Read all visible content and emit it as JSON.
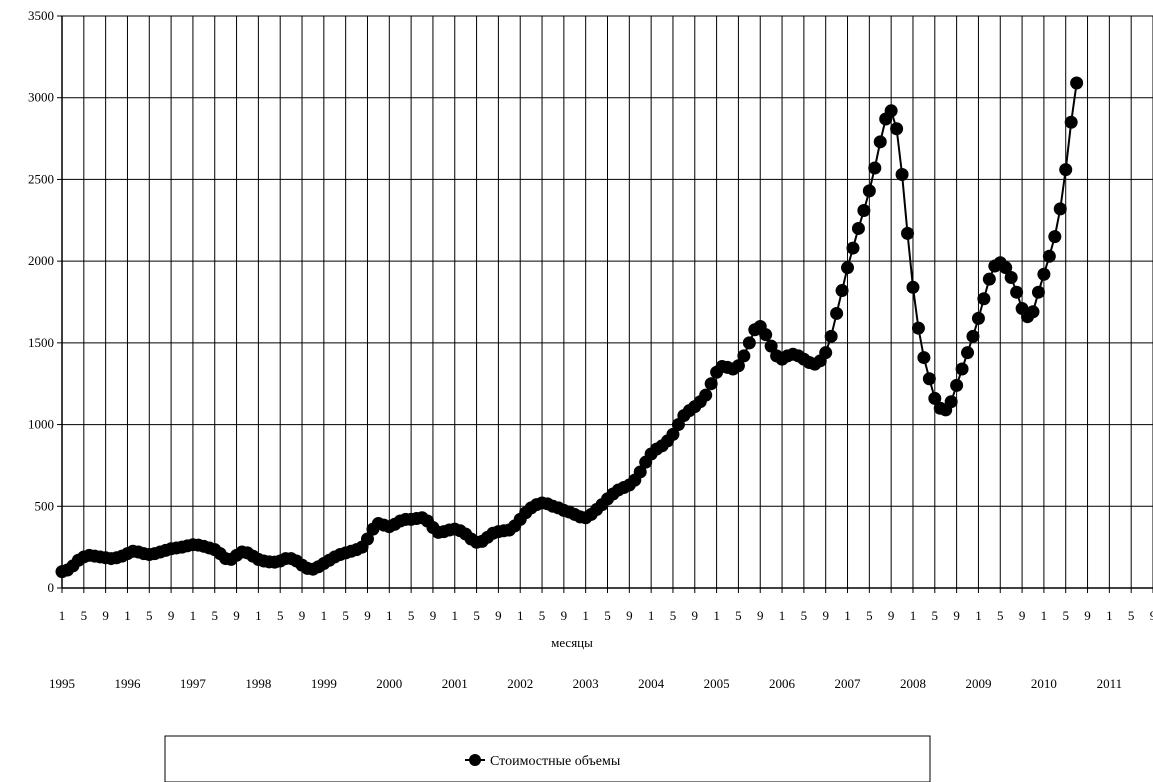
{
  "chart_data": {
    "type": "line",
    "title": "",
    "xlabel": "месяцы",
    "ylabel": "",
    "ylim": [
      0,
      3500
    ],
    "yticks": [
      0,
      500,
      1000,
      1500,
      2000,
      2500,
      3000,
      3500
    ],
    "month_tick_labels": [
      "1",
      "5",
      "9"
    ],
    "years": [
      "1995",
      "1996",
      "1997",
      "1998",
      "1999",
      "2000",
      "2001",
      "2002",
      "2003",
      "2004",
      "2005",
      "2006",
      "2007",
      "2008",
      "2009",
      "2010",
      "2011"
    ],
    "grid": true,
    "legend": {
      "placement": "bottom",
      "entries": [
        "Стоимостные объемы"
      ]
    },
    "series": [
      {
        "name": "Стоимостные объемы",
        "color": "#000000",
        "marker": "circle",
        "values": [
          100,
          110,
          135,
          170,
          190,
          200,
          195,
          190,
          185,
          180,
          185,
          195,
          210,
          225,
          220,
          210,
          205,
          210,
          220,
          230,
          240,
          245,
          250,
          258,
          265,
          262,
          255,
          245,
          235,
          210,
          180,
          175,
          200,
          220,
          215,
          195,
          175,
          165,
          160,
          158,
          165,
          180,
          180,
          165,
          140,
          120,
          115,
          130,
          150,
          170,
          190,
          205,
          215,
          225,
          235,
          250,
          300,
          360,
          395,
          385,
          375,
          390,
          410,
          420,
          420,
          425,
          430,
          410,
          370,
          340,
          345,
          355,
          360,
          350,
          330,
          300,
          280,
          285,
          310,
          335,
          345,
          350,
          355,
          380,
          420,
          460,
          490,
          510,
          520,
          515,
          500,
          490,
          475,
          465,
          450,
          435,
          430,
          450,
          480,
          510,
          545,
          575,
          600,
          615,
          630,
          660,
          710,
          770,
          820,
          850,
          870,
          900,
          940,
          1000,
          1055,
          1085,
          1110,
          1140,
          1180,
          1250,
          1320,
          1355,
          1350,
          1340,
          1360,
          1420,
          1500,
          1580,
          1600,
          1550,
          1480,
          1420,
          1400,
          1420,
          1430,
          1420,
          1400,
          1380,
          1370,
          1390,
          1440,
          1540,
          1680,
          1820,
          1960,
          2080,
          2200,
          2310,
          2430,
          2570,
          2730,
          2870,
          2920,
          2810,
          2530,
          2170,
          1840,
          1590,
          1410,
          1280,
          1160,
          1100,
          1090,
          1140,
          1240,
          1340,
          1440,
          1540,
          1650,
          1770,
          1890,
          1970,
          1990,
          1960,
          1900,
          1810,
          1710,
          1660,
          1690,
          1810,
          1920,
          2030,
          2150,
          2320,
          2560,
          2850,
          3090
        ]
      }
    ]
  }
}
